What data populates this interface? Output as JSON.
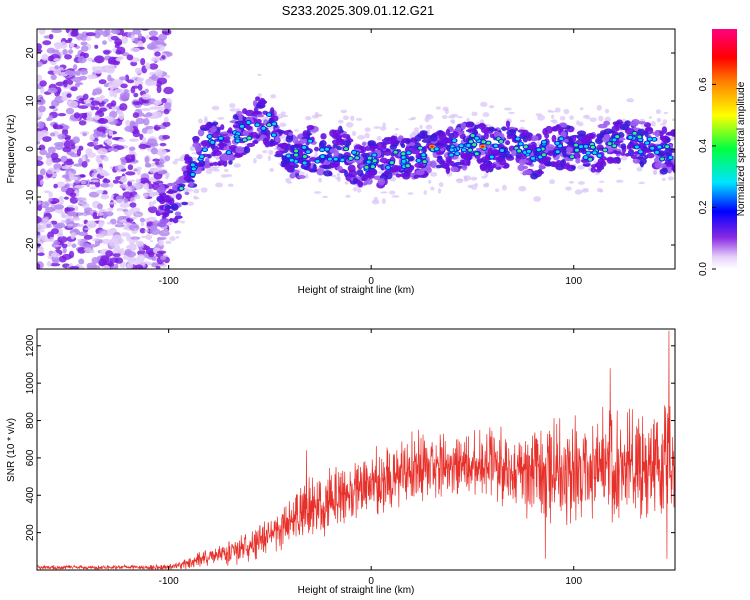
{
  "title": "S233.2025.309.01.12.G21",
  "chart_data": [
    {
      "type": "heatmap",
      "name": "spectrogram",
      "xlabel": "Height of straight line (km)",
      "ylabel": "Frequency (Hz)",
      "xlim": [
        -165,
        150
      ],
      "ylim": [
        -25,
        25
      ],
      "x_ticks": [
        -100,
        0,
        100
      ],
      "y_ticks": [
        -20,
        -10,
        0,
        10,
        20
      ],
      "colorbar": {
        "label": "Normalized spectral amplitude",
        "range": [
          0,
          0.78
        ],
        "ticks": [
          "0.0",
          "0.2",
          "0.4",
          "0.6"
        ],
        "tick_values": [
          0,
          0.2,
          0.4,
          0.6
        ]
      },
      "ridge": {
        "x": [
          -165,
          -140,
          -120,
          -105,
          -100,
          -95,
          -90,
          -85,
          -80,
          -75,
          -70,
          -65,
          -60,
          -55,
          -50,
          -45,
          -40,
          -35,
          -30,
          -25,
          -20,
          -15,
          -10,
          -5,
          0,
          5,
          10,
          20,
          30,
          40,
          50,
          60,
          70,
          80,
          90,
          100,
          110,
          120,
          130,
          140,
          150
        ],
        "freq": [
          -12,
          -12,
          -12,
          -12,
          -12,
          -10,
          -5,
          -1,
          1,
          1,
          0,
          3,
          4,
          7,
          5,
          1,
          -1,
          -2,
          0,
          -1,
          -1,
          0,
          -2,
          -3,
          -3,
          -3,
          -2,
          -2,
          0,
          0,
          1,
          0,
          1,
          -2,
          1,
          0,
          -1,
          2,
          2,
          0,
          -1
        ]
      },
      "noise_region_x": [
        -165,
        -100
      ]
    },
    {
      "type": "line",
      "name": "snr",
      "xlabel": "Height of straight line (km)",
      "ylabel": "SNR (10 * v/v)",
      "xlim": [
        -165,
        150
      ],
      "ylim": [
        0,
        1290
      ],
      "x_ticks": [
        -100,
        0,
        100
      ],
      "y_ticks": [
        200,
        400,
        600,
        800,
        1000,
        1200
      ],
      "color": "#e8302a",
      "envelope": {
        "x": [
          -165,
          -100,
          -95,
          -90,
          -80,
          -70,
          -60,
          -50,
          -40,
          -30,
          -20,
          -10,
          0,
          10,
          20,
          30,
          40,
          50,
          60,
          70,
          80,
          90,
          100,
          110,
          120,
          130,
          140,
          150
        ],
        "mean": [
          15,
          15,
          25,
          35,
          70,
          90,
          120,
          180,
          260,
          320,
          370,
          410,
          460,
          510,
          540,
          560,
          570,
          570,
          560,
          550,
          540,
          530,
          540,
          560,
          560,
          570,
          560,
          560
        ],
        "spread": [
          8,
          10,
          15,
          25,
          35,
          50,
          60,
          80,
          100,
          120,
          120,
          120,
          130,
          140,
          140,
          140,
          130,
          130,
          150,
          160,
          180,
          200,
          200,
          210,
          220,
          220,
          220,
          220
        ]
      },
      "notable_spikes": [
        {
          "x": -32,
          "y": 640
        },
        {
          "x": 147,
          "y": 1280
        },
        {
          "x": 118,
          "y": 1080
        },
        {
          "x": 86,
          "y": 60
        },
        {
          "x": 146,
          "y": 60
        }
      ]
    }
  ]
}
